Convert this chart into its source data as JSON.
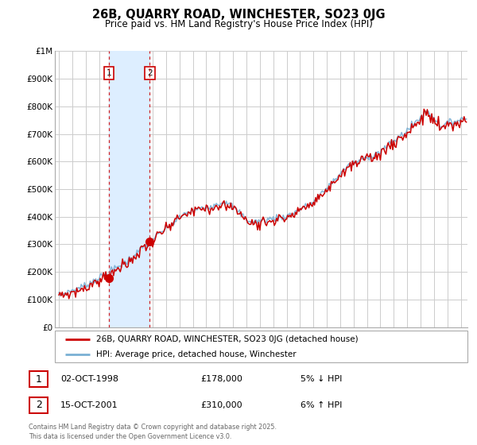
{
  "title": "26B, QUARRY ROAD, WINCHESTER, SO23 0JG",
  "subtitle": "Price paid vs. HM Land Registry's House Price Index (HPI)",
  "footer": "Contains HM Land Registry data © Crown copyright and database right 2025.\nThis data is licensed under the Open Government Licence v3.0.",
  "legend_line1": "26B, QUARRY ROAD, WINCHESTER, SO23 0JG (detached house)",
  "legend_line2": "HPI: Average price, detached house, Winchester",
  "transaction1_date": "02-OCT-1998",
  "transaction1_price": "£178,000",
  "transaction1_hpi": "5% ↓ HPI",
  "transaction2_date": "15-OCT-2001",
  "transaction2_price": "£310,000",
  "transaction2_hpi": "6% ↑ HPI",
  "red_color": "#cc0000",
  "blue_color": "#7ab0d4",
  "shading_color": "#ddeeff",
  "grid_color": "#cccccc",
  "ylim": [
    0,
    1000000
  ],
  "yticks": [
    0,
    100000,
    200000,
    300000,
    400000,
    500000,
    600000,
    700000,
    800000,
    900000,
    1000000
  ],
  "ytick_labels": [
    "£0",
    "£100K",
    "£200K",
    "£300K",
    "£400K",
    "£500K",
    "£600K",
    "£700K",
    "£800K",
    "£900K",
    "£1M"
  ],
  "xlim_start": 1994.7,
  "xlim_end": 2025.5,
  "vline1_x": 1998.75,
  "vline2_x": 2001.79,
  "dot1_x": 1998.75,
  "dot1_y": 178000,
  "dot2_x": 2001.79,
  "dot2_y": 310000
}
